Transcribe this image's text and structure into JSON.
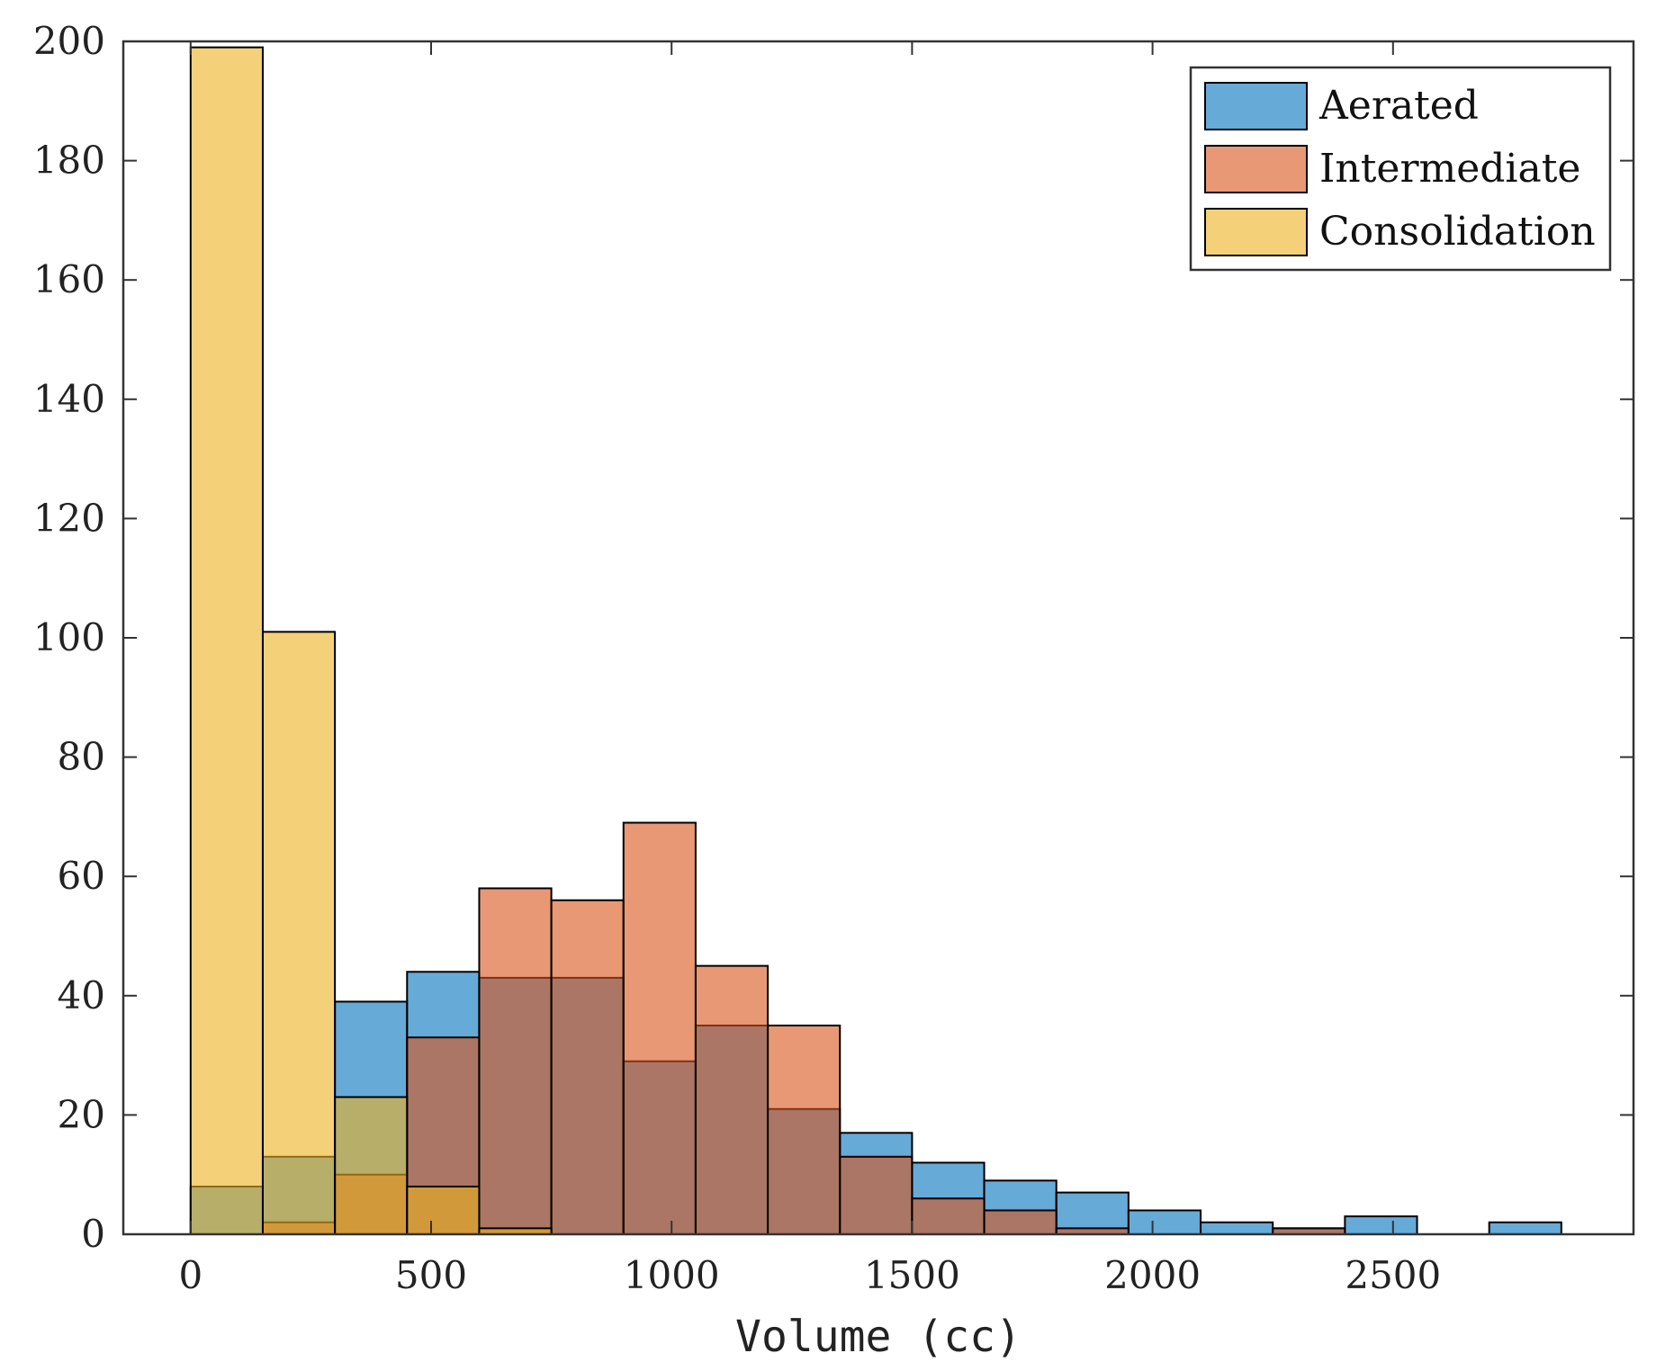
{
  "chart_data": {
    "type": "histogram",
    "title": "",
    "xlabel": "Volume (cc)",
    "ylabel": "",
    "xlim": [
      -140,
      3000
    ],
    "ylim": [
      0,
      200
    ],
    "xticks": [
      0,
      500,
      1000,
      1500,
      2000,
      2500
    ],
    "yticks": [
      0,
      20,
      40,
      60,
      80,
      100,
      120,
      140,
      160,
      180,
      200
    ],
    "grid": false,
    "legend_position": "top-right",
    "overlay": "semi-transparent overlapping bars",
    "series": [
      {
        "name": "Aerated",
        "color": "#0072BD",
        "bins": [
          {
            "x0": 0,
            "x1": 150,
            "count": 8
          },
          {
            "x0": 150,
            "x1": 300,
            "count": 13
          },
          {
            "x0": 300,
            "x1": 450,
            "count": 39
          },
          {
            "x0": 450,
            "x1": 600,
            "count": 44
          },
          {
            "x0": 600,
            "x1": 750,
            "count": 43
          },
          {
            "x0": 750,
            "x1": 900,
            "count": 43
          },
          {
            "x0": 900,
            "x1": 1050,
            "count": 29
          },
          {
            "x0": 1050,
            "x1": 1200,
            "count": 35
          },
          {
            "x0": 1200,
            "x1": 1350,
            "count": 21
          },
          {
            "x0": 1350,
            "x1": 1500,
            "count": 17
          },
          {
            "x0": 1500,
            "x1": 1650,
            "count": 12
          },
          {
            "x0": 1650,
            "x1": 1800,
            "count": 9
          },
          {
            "x0": 1800,
            "x1": 1950,
            "count": 7
          },
          {
            "x0": 1950,
            "x1": 2100,
            "count": 4
          },
          {
            "x0": 2100,
            "x1": 2250,
            "count": 2
          },
          {
            "x0": 2250,
            "x1": 2400,
            "count": 1
          },
          {
            "x0": 2400,
            "x1": 2550,
            "count": 3
          },
          {
            "x0": 2700,
            "x1": 2850,
            "count": 2
          }
        ]
      },
      {
        "name": "Intermediate",
        "color": "#D95319",
        "bins": [
          {
            "x0": 150,
            "x1": 300,
            "count": 2
          },
          {
            "x0": 300,
            "x1": 450,
            "count": 10
          },
          {
            "x0": 450,
            "x1": 600,
            "count": 33
          },
          {
            "x0": 600,
            "x1": 750,
            "count": 58
          },
          {
            "x0": 750,
            "x1": 900,
            "count": 56
          },
          {
            "x0": 900,
            "x1": 1050,
            "count": 69
          },
          {
            "x0": 1050,
            "x1": 1200,
            "count": 45
          },
          {
            "x0": 1200,
            "x1": 1350,
            "count": 35
          },
          {
            "x0": 1350,
            "x1": 1500,
            "count": 13
          },
          {
            "x0": 1500,
            "x1": 1650,
            "count": 6
          },
          {
            "x0": 1650,
            "x1": 1800,
            "count": 4
          },
          {
            "x0": 1800,
            "x1": 1950,
            "count": 1
          },
          {
            "x0": 2250,
            "x1": 2400,
            "count": 1
          }
        ]
      },
      {
        "name": "Consolidation",
        "color": "#EDB120",
        "bins": [
          {
            "x0": 0,
            "x1": 150,
            "count": 199
          },
          {
            "x0": 150,
            "x1": 300,
            "count": 101
          },
          {
            "x0": 300,
            "x1": 450,
            "count": 23
          },
          {
            "x0": 450,
            "x1": 600,
            "count": 8
          },
          {
            "x0": 600,
            "x1": 750,
            "count": 1
          }
        ]
      }
    ]
  }
}
